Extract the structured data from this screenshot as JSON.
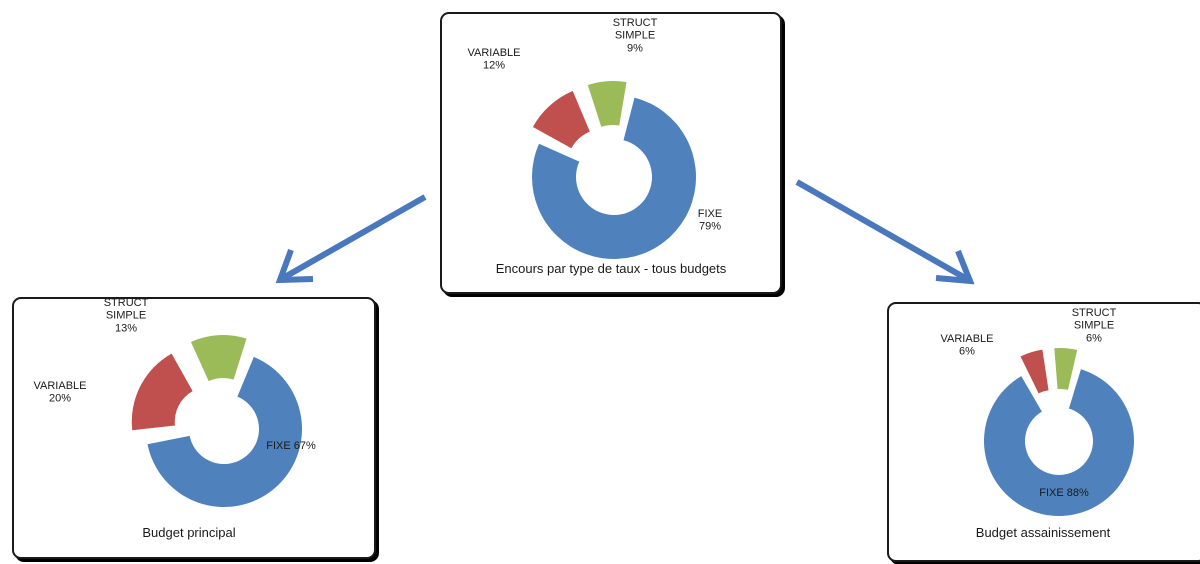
{
  "colors": {
    "FIXE": "#4f81bd",
    "VARIABLE": "#c0504d",
    "STRUCT SIMPLE": "#9bbb59",
    "arrow": "#4a78bd"
  },
  "chart_data": [
    {
      "type": "pie",
      "title": "Encours par type de taux - tous budgets",
      "categories": [
        "FIXE",
        "VARIABLE",
        "STRUCT SIMPLE"
      ],
      "values": [
        79,
        12,
        9
      ],
      "labels": [
        [
          "FIXE",
          "79%"
        ],
        [
          "VARIABLE",
          "12%"
        ],
        [
          "STRUCT",
          "SIMPLE",
          "9%"
        ]
      ]
    },
    {
      "type": "pie",
      "title": "Budget principal",
      "categories": [
        "FIXE",
        "VARIABLE",
        "STRUCT SIMPLE"
      ],
      "values": [
        67,
        20,
        13
      ],
      "labels": [
        [
          "FIXE 67%"
        ],
        [
          "VARIABLE",
          "20%"
        ],
        [
          "STRUCT",
          "SIMPLE",
          "13%"
        ]
      ]
    },
    {
      "type": "pie",
      "title": "Budget assainissement",
      "categories": [
        "FIXE",
        "VARIABLE",
        "STRUCT SIMPLE"
      ],
      "values": [
        88,
        6,
        6
      ],
      "labels": [
        [
          "FIXE 88%"
        ],
        [
          "VARIABLE",
          "6%"
        ],
        [
          "STRUCT",
          "SIMPLE",
          "6%"
        ]
      ]
    }
  ]
}
